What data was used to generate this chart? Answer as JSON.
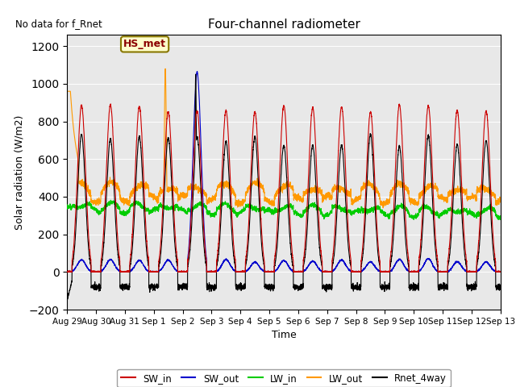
{
  "title": "Four-channel radiometer",
  "no_data_text": "No data for f_Rnet",
  "box_label": "HS_met",
  "ylabel": "Solar radiation (W/m2)",
  "xlabel": "Time",
  "ylim": [
    -200,
    1260
  ],
  "yticks": [
    -200,
    0,
    200,
    400,
    600,
    800,
    1000,
    1200
  ],
  "bg_color": "#e8e8e8",
  "fig_bg": "#ffffff",
  "line_colors": {
    "SW_in": "#cc0000",
    "SW_out": "#0000cc",
    "LW_in": "#00cc00",
    "LW_out": "#ff9900",
    "Rnet_4way": "#000000"
  },
  "x_tick_labels": [
    "Aug 29",
    "Aug 30",
    "Aug 31",
    "Sep 1",
    "Sep 2",
    "Sep 3",
    "Sep 4",
    "Sep 5",
    "Sep 6",
    "Sep 7",
    "Sep 8",
    "Sep 9",
    "Sep 10",
    "Sep 11",
    "Sep 12",
    "Sep 13"
  ],
  "n_days": 15,
  "pts_per_day": 288
}
